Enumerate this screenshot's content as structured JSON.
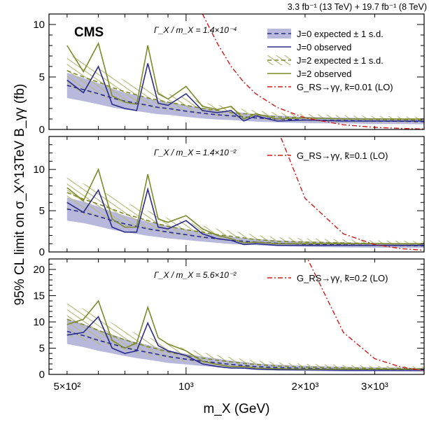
{
  "figure": {
    "lumi_label": "3.3 fb⁻¹ (13 TeV) + 19.7 fb⁻¹ (8 TeV)",
    "experiment_label": "CMS",
    "ylabel": "95% CL limit on σ_X^13TeV B_γγ (fb)",
    "xlabel": "m_X (GeV)"
  },
  "chart_data": [
    {
      "type": "line",
      "panel": "top",
      "width_label": "Γ_X / m_X = 1.4×10⁻⁴",
      "xscale": "log",
      "xlim": [
        450,
        4000
      ],
      "ylim": [
        0,
        11
      ],
      "yticks": [
        0,
        5,
        10
      ],
      "x_ticklabels": [
        "5×10²",
        "10³",
        "2×10³",
        "3×10³"
      ],
      "x": [
        500,
        550,
        600,
        650,
        700,
        750,
        800,
        850,
        900,
        1000,
        1100,
        1200,
        1300,
        1400,
        1500,
        1700,
        2000,
        2500,
        3000,
        3500,
        4000
      ],
      "legend": {
        "placement": "top-right",
        "entries": [
          "J=0 expected ± 1 s.d.",
          "J=0 observed",
          "J=2 expected ± 1 s.d.",
          "J=2 observed",
          "G_RS→γγ, k̃=0.01 (LO)"
        ]
      },
      "series": [
        {
          "name": "J=0 expected",
          "values": [
            4.2,
            3.8,
            3.4,
            3.0,
            2.7,
            2.5,
            2.3,
            2.1,
            2.0,
            1.75,
            1.55,
            1.4,
            1.3,
            1.2,
            1.1,
            1.0,
            0.9,
            0.85,
            0.8,
            0.78,
            0.75
          ],
          "band": [
            1.2,
            1.1,
            1.0,
            0.9,
            0.8,
            0.75,
            0.7,
            0.65,
            0.6,
            0.55,
            0.5,
            0.45,
            0.4,
            0.38,
            0.35,
            0.32,
            0.3,
            0.28,
            0.27,
            0.26,
            0.25
          ]
        },
        {
          "name": "J=0 observed",
          "values": [
            4.7,
            3.5,
            6.0,
            2.4,
            2.0,
            1.8,
            6.3,
            2.5,
            2.3,
            3.4,
            1.8,
            1.6,
            1.8,
            0.8,
            1.3,
            0.8,
            0.9,
            0.8,
            0.8,
            0.8,
            0.8
          ]
        },
        {
          "name": "J=2 expected",
          "values": [
            5.6,
            5.0,
            4.5,
            4.0,
            3.6,
            3.3,
            3.0,
            2.8,
            2.6,
            2.3,
            2.0,
            1.8,
            1.6,
            1.5,
            1.4,
            1.2,
            1.1,
            1.0,
            0.95,
            0.92,
            0.9
          ],
          "band": [
            1.6,
            1.5,
            1.3,
            1.2,
            1.1,
            1.0,
            0.9,
            0.85,
            0.8,
            0.7,
            0.6,
            0.55,
            0.5,
            0.45,
            0.42,
            0.4,
            0.37,
            0.35,
            0.33,
            0.32,
            0.3
          ]
        },
        {
          "name": "J=2 observed",
          "values": [
            8.0,
            5.5,
            8.2,
            3.2,
            2.6,
            2.4,
            8.0,
            3.4,
            2.9,
            4.1,
            2.2,
            1.9,
            2.2,
            1.0,
            1.5,
            1.0,
            1.1,
            1.0,
            1.0,
            1.0,
            1.0
          ]
        },
        {
          "name": "G_RS→γγ, k̃=0.01 (LO)",
          "values": [
            null,
            null,
            null,
            null,
            null,
            null,
            null,
            null,
            null,
            null,
            11,
            8.2,
            6.0,
            4.5,
            3.4,
            2.1,
            1.1,
            0.45,
            0.2,
            0.1,
            0.05
          ]
        }
      ]
    },
    {
      "type": "line",
      "panel": "middle",
      "width_label": "Γ_X / m_X = 1.4×10⁻²",
      "xscale": "log",
      "xlim": [
        450,
        4000
      ],
      "ylim": [
        0,
        14
      ],
      "yticks": [
        0,
        5,
        10
      ],
      "x": [
        500,
        550,
        600,
        650,
        700,
        750,
        800,
        850,
        900,
        1000,
        1100,
        1200,
        1300,
        1400,
        1500,
        1700,
        2000,
        2500,
        3000,
        3500,
        4000
      ],
      "legend": {
        "placement": "top-right",
        "entries": [
          "G_RS→γγ, k̃=0.1 (LO)"
        ]
      },
      "series": [
        {
          "name": "J=0 expected",
          "values": [
            5.2,
            4.8,
            4.3,
            3.8,
            3.4,
            3.1,
            2.8,
            2.6,
            2.4,
            2.1,
            1.8,
            1.6,
            1.4,
            1.3,
            1.2,
            1.05,
            0.95,
            0.85,
            0.8,
            0.78,
            0.75
          ],
          "band": [
            1.4,
            1.3,
            1.2,
            1.1,
            1.0,
            0.9,
            0.85,
            0.8,
            0.75,
            0.65,
            0.55,
            0.5,
            0.45,
            0.4,
            0.38,
            0.35,
            0.32,
            0.3,
            0.28,
            0.27,
            0.26
          ]
        },
        {
          "name": "J=0 observed",
          "values": [
            6.0,
            4.8,
            7.5,
            3.0,
            2.4,
            2.4,
            7.6,
            3.0,
            2.8,
            3.8,
            2.2,
            1.6,
            1.4,
            0.9,
            1.0,
            0.8,
            0.8,
            0.8,
            0.8,
            0.8,
            0.8
          ]
        },
        {
          "name": "J=2 expected",
          "values": [
            7.2,
            6.4,
            5.8,
            5.2,
            4.6,
            4.2,
            3.8,
            3.4,
            3.1,
            2.7,
            2.4,
            2.1,
            1.9,
            1.7,
            1.5,
            1.3,
            1.2,
            1.1,
            1.0,
            0.98,
            0.95
          ],
          "band": [
            2.0,
            1.9,
            1.7,
            1.6,
            1.4,
            1.3,
            1.2,
            1.1,
            1.0,
            0.9,
            0.8,
            0.7,
            0.65,
            0.6,
            0.55,
            0.5,
            0.45,
            0.42,
            0.4,
            0.38,
            0.36
          ]
        },
        {
          "name": "J=2 observed",
          "values": [
            7.8,
            6.2,
            10.0,
            4.0,
            3.0,
            3.0,
            9.4,
            4.0,
            3.6,
            4.4,
            2.8,
            2.0,
            1.6,
            1.1,
            1.2,
            1.0,
            1.0,
            1.0,
            1.0,
            1.0,
            1.0
          ]
        },
        {
          "name": "G_RS→γγ, k̃=0.1 (LO)",
          "values": [
            null,
            null,
            null,
            null,
            null,
            null,
            null,
            null,
            null,
            null,
            null,
            null,
            null,
            null,
            null,
            15,
            6.5,
            2.2,
            0.9,
            0.4,
            0.2
          ]
        }
      ]
    },
    {
      "type": "line",
      "panel": "bottom",
      "width_label": "Γ_X / m_X = 5.6×10⁻²",
      "xscale": "log",
      "xlim": [
        450,
        4000
      ],
      "ylim": [
        0,
        22
      ],
      "yticks": [
        0,
        5,
        10,
        15,
        20
      ],
      "x": [
        500,
        550,
        600,
        650,
        700,
        750,
        800,
        850,
        900,
        1000,
        1100,
        1200,
        1300,
        1400,
        1500,
        1700,
        2000,
        2500,
        3000,
        3500,
        4000
      ],
      "legend": {
        "placement": "top-right",
        "entries": [
          "G_RS→γγ, k̃=0.2 (LO)"
        ]
      },
      "series": [
        {
          "name": "J=0 expected",
          "values": [
            8.2,
            7.4,
            6.5,
            5.8,
            5.1,
            4.6,
            4.2,
            3.8,
            3.4,
            2.9,
            2.5,
            2.2,
            1.9,
            1.7,
            1.5,
            1.3,
            1.15,
            1.0,
            0.95,
            0.9,
            0.85
          ],
          "band": [
            2.4,
            2.2,
            2.0,
            1.8,
            1.6,
            1.5,
            1.4,
            1.3,
            1.2,
            1.0,
            0.9,
            0.8,
            0.7,
            0.65,
            0.6,
            0.55,
            0.5,
            0.45,
            0.42,
            0.4,
            0.38
          ]
        },
        {
          "name": "J=0 observed",
          "values": [
            7.5,
            8.0,
            11.0,
            5.0,
            4.0,
            4.5,
            9.8,
            5.5,
            4.5,
            3.6,
            2.0,
            1.5,
            1.2,
            1.2,
            1.0,
            0.9,
            0.9,
            0.8,
            0.8,
            0.8,
            0.8
          ]
        },
        {
          "name": "J=2 expected",
          "values": [
            10.5,
            9.5,
            8.4,
            7.4,
            6.6,
            5.9,
            5.3,
            4.8,
            4.3,
            3.6,
            3.1,
            2.7,
            2.4,
            2.1,
            1.9,
            1.6,
            1.4,
            1.25,
            1.15,
            1.1,
            1.05
          ],
          "band": [
            3.2,
            3.0,
            2.7,
            2.4,
            2.1,
            1.9,
            1.8,
            1.6,
            1.5,
            1.3,
            1.1,
            1.0,
            0.9,
            0.8,
            0.75,
            0.7,
            0.62,
            0.55,
            0.5,
            0.48,
            0.45
          ]
        },
        {
          "name": "J=2 observed",
          "values": [
            9.5,
            10.5,
            14.0,
            6.5,
            5.0,
            6.0,
            12.8,
            7.0,
            5.8,
            4.5,
            2.5,
            1.9,
            1.5,
            1.5,
            1.2,
            1.1,
            1.0,
            1.0,
            1.0,
            1.0,
            1.0
          ]
        },
        {
          "name": "G_RS→γγ, k̃=0.2 (LO)",
          "values": [
            null,
            null,
            null,
            null,
            null,
            null,
            null,
            null,
            null,
            null,
            null,
            null,
            null,
            null,
            null,
            null,
            23,
            8.0,
            3.0,
            1.4,
            0.7
          ]
        }
      ]
    }
  ],
  "colors": {
    "j0_line": "#2b2b8c",
    "j0_band": "#b8b8dc",
    "j2_line": "#7d8a2a",
    "j2_hatch": "#b6bc7c",
    "grs_line": "#d11a1a"
  }
}
